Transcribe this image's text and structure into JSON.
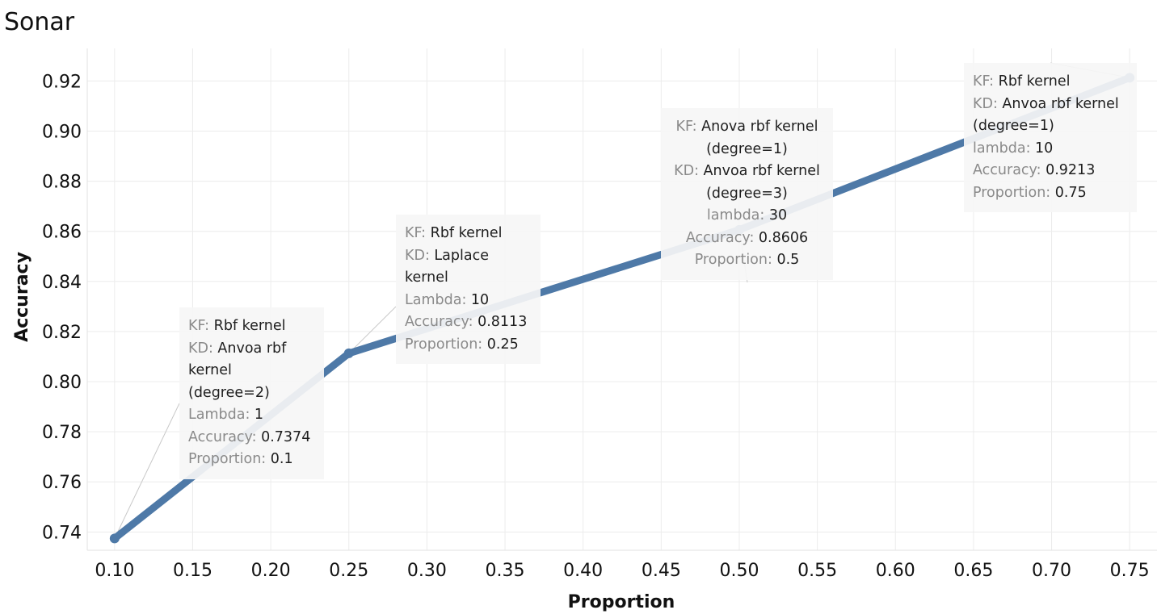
{
  "chart_data": {
    "type": "line",
    "title": "Sonar",
    "xlabel": "Proportion",
    "ylabel": "Accuracy",
    "x_ticks": [
      "0.10",
      "0.15",
      "0.20",
      "0.25",
      "0.30",
      "0.35",
      "0.40",
      "0.45",
      "0.50",
      "0.55",
      "0.60",
      "0.65",
      "0.70",
      "0.75"
    ],
    "y_ticks": [
      "0.74",
      "0.76",
      "0.78",
      "0.80",
      "0.82",
      "0.84",
      "0.86",
      "0.88",
      "0.90",
      "0.92"
    ],
    "xlim": [
      0.0825,
      0.7675
    ],
    "ylim": [
      0.7327,
      0.933
    ],
    "grid": true,
    "series": [
      {
        "name": "Accuracy",
        "color": "#4e79a7",
        "x": [
          0.1,
          0.25,
          0.5,
          0.75
        ],
        "y": [
          0.7374,
          0.8113,
          0.8606,
          0.9213
        ]
      }
    ],
    "annotations": [
      {
        "rows": [
          {
            "k": "KF: ",
            "v": "Rbf kernel"
          },
          {
            "k": "KD: ",
            "v": "Anvoa rbf kernel (degree=2)"
          },
          {
            "k": "Lambda: ",
            "v": "1"
          },
          {
            "k": "Accuracy: ",
            "v": "0.7374"
          },
          {
            "k": "Proportion: ",
            "v": "0.1"
          }
        ]
      },
      {
        "rows": [
          {
            "k": "KF: ",
            "v": "Rbf kernel"
          },
          {
            "k": "KD: ",
            "v": "Laplace kernel"
          },
          {
            "k": "Lambda: ",
            "v": "10"
          },
          {
            "k": "Accuracy: ",
            "v": "0.8113"
          },
          {
            "k": "Proportion: ",
            "v": "0.25"
          }
        ]
      },
      {
        "rows": [
          {
            "k": "KF: ",
            "v": "Anova rbf kernel (degree=1)"
          },
          {
            "k": "KD: ",
            "v": "Anvoa rbf kernel (degree=3)"
          },
          {
            "k": "lambda: ",
            "v": "30"
          },
          {
            "k": "Accuracy: ",
            "v": "0.8606"
          },
          {
            "k": "Proportion: ",
            "v": "0.5"
          }
        ]
      },
      {
        "rows": [
          {
            "k": "KF: ",
            "v": "Rbf kernel"
          },
          {
            "k": "KD: ",
            "v": "Anvoa rbf kernel (degree=1)"
          },
          {
            "k": "lambda: ",
            "v": "10"
          },
          {
            "k": "Accuracy: ",
            "v": "0.9213"
          },
          {
            "k": "Proportion: ",
            "v": "0.75"
          }
        ]
      }
    ]
  }
}
